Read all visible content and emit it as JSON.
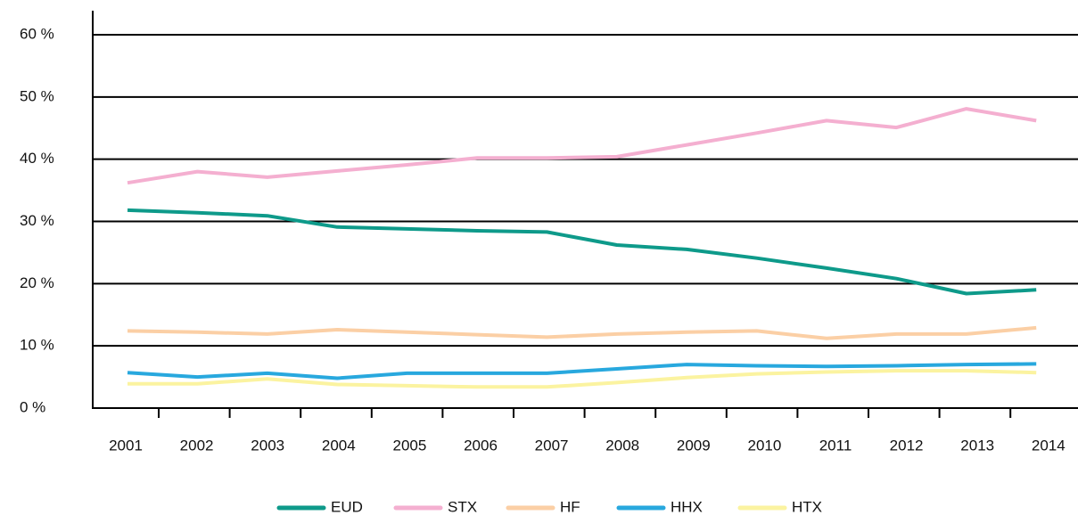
{
  "chart_data": {
    "type": "line",
    "categories": [
      "2001",
      "2002",
      "2003",
      "2004",
      "2005",
      "2006",
      "2007",
      "2008",
      "2009",
      "2010",
      "2011",
      "2012",
      "2013",
      "2014"
    ],
    "series": [
      {
        "name": "EUD",
        "color": "#0e9a8a",
        "values": [
          31.8,
          31.4,
          30.9,
          29.1,
          28.8,
          28.5,
          28.3,
          26.2,
          25.5,
          24.1,
          22.5,
          20.8,
          18.4,
          19.0
        ]
      },
      {
        "name": "STX",
        "color": "#f4afd0",
        "values": [
          36.2,
          38.0,
          37.1,
          38.1,
          39.1,
          40.2,
          40.2,
          40.4,
          42.3,
          44.2,
          46.2,
          45.1,
          48.1,
          46.2
        ]
      },
      {
        "name": "HF",
        "color": "#fbcfa5",
        "values": [
          12.4,
          12.2,
          11.9,
          12.6,
          12.2,
          11.8,
          11.4,
          11.9,
          12.2,
          12.4,
          11.2,
          11.9,
          11.9,
          12.9
        ]
      },
      {
        "name": "HHX",
        "color": "#28a8de",
        "values": [
          5.7,
          5.0,
          5.6,
          4.8,
          5.6,
          5.6,
          5.6,
          6.3,
          7.0,
          6.8,
          6.7,
          6.8,
          7.0,
          7.1
        ]
      },
      {
        "name": "HTX",
        "color": "#fbf3a0",
        "values": [
          3.9,
          3.9,
          4.7,
          3.8,
          3.6,
          3.4,
          3.4,
          4.1,
          4.9,
          5.5,
          5.8,
          6.0,
          6.0,
          5.7
        ]
      }
    ],
    "ylim": [
      0,
      60
    ],
    "yticks": [
      {
        "value": 0,
        "label": "0 %"
      },
      {
        "value": 10,
        "label": "10 %"
      },
      {
        "value": 20,
        "label": "20 %"
      },
      {
        "value": 30,
        "label": "30 %"
      },
      {
        "value": 40,
        "label": "40 %"
      },
      {
        "value": 50,
        "label": "50 %"
      },
      {
        "value": 60,
        "label": "60 %"
      }
    ],
    "grid": true,
    "legend": "bottom"
  }
}
